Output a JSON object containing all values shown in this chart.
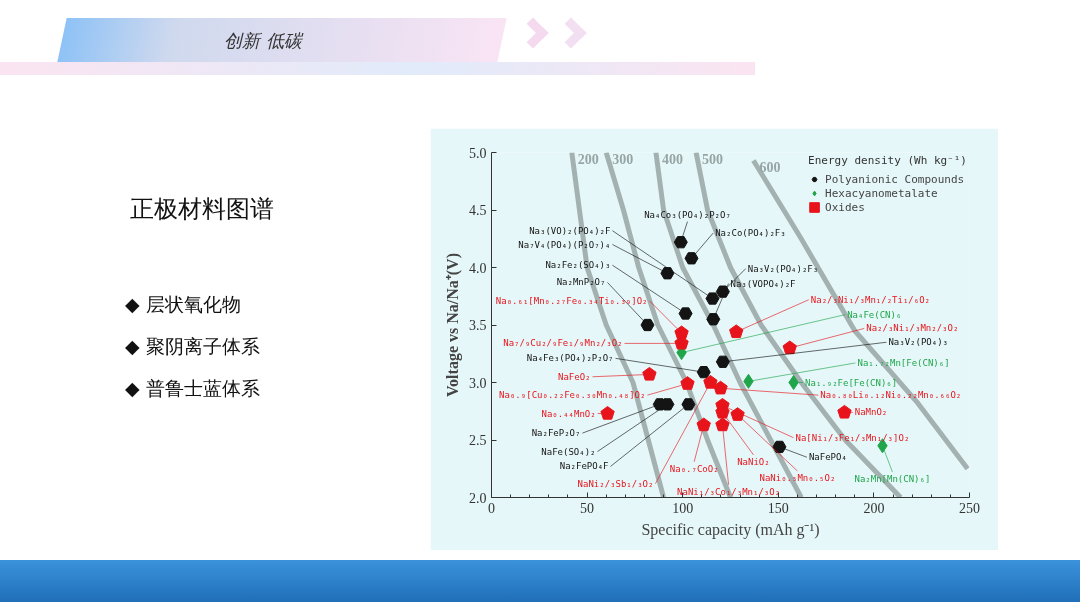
{
  "chart_data": {
    "type": "scatter",
    "title": "正极材料图谱",
    "xlabel": "Specific capacity (mAh g⁻¹)",
    "ylabel": "Voltage vs Na/Na⁺(V)",
    "legend_title": "Energy density (Wh kg⁻¹)",
    "legend": "top right",
    "xlim": [
      0,
      250
    ],
    "xticks": [
      0,
      50,
      100,
      150,
      200,
      250
    ],
    "ylim": [
      2,
      5
    ],
    "yticks": [
      {
        "value": 2,
        "label": "2.0"
      },
      {
        "value": 2.5,
        "label": "2.5"
      },
      {
        "value": 3,
        "label": "3.0"
      },
      {
        "value": 3.5,
        "label": "3.5"
      },
      {
        "value": 4,
        "label": "4.0"
      },
      {
        "value": 4.5,
        "label": "4.5"
      },
      {
        "value": 5,
        "label": "5.0"
      }
    ],
    "series": [
      {
        "type": "line",
        "name": "200",
        "color": "#97a5a5",
        "x": [
          42,
          50,
          60,
          74,
          82,
          90
        ],
        "values": [
          5.0,
          4.0,
          3.5,
          3.0,
          2.5,
          2.0
        ]
      },
      {
        "type": "line",
        "name": "300",
        "color": "#97a5a5",
        "x": [
          60,
          69,
          77,
          87,
          102,
          113,
          125
        ],
        "values": [
          5.0,
          4.5,
          4.0,
          3.5,
          3.0,
          2.5,
          2.0
        ]
      },
      {
        "type": "line",
        "name": "400",
        "color": "#97a5a5",
        "x": [
          86,
          90,
          100,
          116,
          130,
          146,
          162
        ],
        "values": [
          5.0,
          4.5,
          4.0,
          3.5,
          3.0,
          2.5,
          2.0
        ]
      },
      {
        "type": "line",
        "name": "500",
        "color": "#97a5a5",
        "x": [
          107,
          113,
          125,
          141,
          162,
          185,
          214
        ],
        "values": [
          5.0,
          4.5,
          4.0,
          3.5,
          3.0,
          2.5,
          2.0
        ]
      },
      {
        "type": "line",
        "name": "600",
        "color": "#97a5a5",
        "x": [
          137,
          162,
          190,
          223,
          249
        ],
        "values": [
          4.93,
          4.25,
          3.45,
          2.82,
          2.25
        ]
      },
      {
        "name": "Polyanionic Compounds",
        "color": "#141414",
        "x": [
          99,
          104.6,
          92,
          121,
          115.6,
          116,
          101.5,
          81.6,
          121,
          111,
          88,
          92,
          103,
          150.6
        ],
        "values": [
          4.22,
          4.08,
          3.95,
          3.79,
          3.73,
          3.55,
          3.6,
          3.5,
          3.18,
          3.09,
          2.81,
          2.81,
          2.81,
          2.44
        ]
      },
      {
        "name": "Hexacyanometalate",
        "color": "#1fa64a",
        "x": [
          99.4,
          134.4,
          158,
          204.5
        ],
        "values": [
          3.26,
          3.01,
          3.0,
          2.45
        ]
      },
      {
        "name": "Oxides",
        "color": "#e8141b",
        "x": [
          99.4,
          99.4,
          128,
          156,
          82.6,
          102.5,
          114.5,
          119.8,
          120.8,
          120.8,
          128.7,
          60.7,
          111,
          120.8,
          184.6
        ],
        "values": [
          3.43,
          3.34,
          3.44,
          3.3,
          3.07,
          2.99,
          3.0,
          2.95,
          2.8,
          2.74,
          2.72,
          2.73,
          2.63,
          2.63,
          2.74
        ]
      }
    ],
    "annotations": [
      "创新 低碳",
      "◆ 层状氧化物",
      "◆ 聚阴离子体系",
      "◆ 普鲁士蓝体系",
      {
        "text": "Na₄Co₃(PO₄)₂P₂O₇",
        "x": 99,
        "y": 4.22
      },
      {
        "text": "Na₂Co(PO₄)₂F₃",
        "x": 104.6,
        "y": 4.08
      },
      {
        "text": "Na₃(VO)₂(PO₄)₂F",
        "x": 115.6,
        "y": 3.73
      },
      {
        "text": "Na₇V₄(PO₄)(P₂O₇)₄",
        "x": 92,
        "y": 3.95
      },
      {
        "text": "Na₂Fe₂(SO₄)₃",
        "x": 101.5,
        "y": 3.6
      },
      {
        "text": "Na₂MnP₂O₇",
        "x": 81.6,
        "y": 3.5
      },
      {
        "text": "Na₀.₆₁[Mn₀.₂₇Fe₀.₃₄Ti₀.₃₉]O₂",
        "x": 99.4,
        "y": 3.43
      },
      {
        "text": "Na₇/₉Cu₂/₉Fe₁/₉Mn₂/₃O₂",
        "x": 99.4,
        "y": 3.34
      },
      {
        "text": "Na₄Fe₃(PO₄)₂P₂O₇",
        "x": 111,
        "y": 3.09
      },
      {
        "text": "NaFeO₂",
        "x": 82.6,
        "y": 3.07
      },
      {
        "text": "Na₀.₉[Cu₀.₂₂Fe₀.₃₀Mn₀.₄₈]O₂",
        "x": 102.5,
        "y": 2.99
      },
      {
        "text": "Na₀.₄₄MnO₂",
        "x": 60.7,
        "y": 2.73
      },
      {
        "text": "Na₂FeP₂O₇",
        "x": 88,
        "y": 2.81
      },
      {
        "text": "NaFe(SO₄)₂",
        "x": 92,
        "y": 2.81
      },
      {
        "text": "Na₂FePO₄F",
        "x": 103,
        "y": 2.81
      },
      {
        "text": "NaNi₂/₃Sb₁/₃O₂",
        "x": 114.5,
        "y": 3.0
      },
      {
        "text": "Na₀.₇CoO₂",
        "x": 111,
        "y": 2.63
      },
      {
        "text": "NaNi₁/₃Co₁/₃Mn₁/₃O₂",
        "x": 120.8,
        "y": 2.63
      },
      {
        "text": "NaNiO₂",
        "x": 120.8,
        "y": 2.74
      },
      {
        "text": "NaNi₀.₅Mn₀.₅O₂",
        "x": 128.7,
        "y": 2.72
      },
      {
        "text": "Na[Ni₁/₃Fe₁/₃Mn₁/₃]O₂",
        "x": 120.8,
        "y": 2.8
      },
      {
        "text": "NaFePO₄",
        "x": 150.6,
        "y": 2.44
      },
      {
        "text": "Na₂Mn[Mn(CN)₆]",
        "x": 204.5,
        "y": 2.45
      },
      {
        "text": "NaMnO₂",
        "x": 184.6,
        "y": 2.74
      },
      {
        "text": "Na₀.₈₀Li₀.₁₂Ni₀.₂₂Mn₀.₆₆O₂",
        "x": 119.8,
        "y": 2.95
      },
      {
        "text": "Na₁.₉₂Fe[Fe(CN)₆]",
        "x": 158,
        "y": 3.0
      },
      {
        "text": "Na₁.₇₂Mn[Fe(CN)₆]",
        "x": 134.4,
        "y": 3.01
      },
      {
        "text": "Na₃V₂(PO₄)₃",
        "x": 121,
        "y": 3.18
      },
      {
        "text": "Na₂/₃Ni₁/₃Mn₂/₃O₂",
        "x": 156,
        "y": 3.3
      },
      {
        "text": "Na₄Fe(CN)₆",
        "x": 99.4,
        "y": 3.26
      },
      {
        "text": "Na₂/₃Ni₁/₃Mn₁/₂Ti₁/₆O₂",
        "x": 128,
        "y": 3.44
      },
      {
        "text": "Na₃V₂(PO₄)₂F₃",
        "x": 121,
        "y": 3.79
      },
      {
        "text": "Na₃(VOPO₄)₂F",
        "x": 116,
        "y": 3.55
      }
    ]
  }
}
